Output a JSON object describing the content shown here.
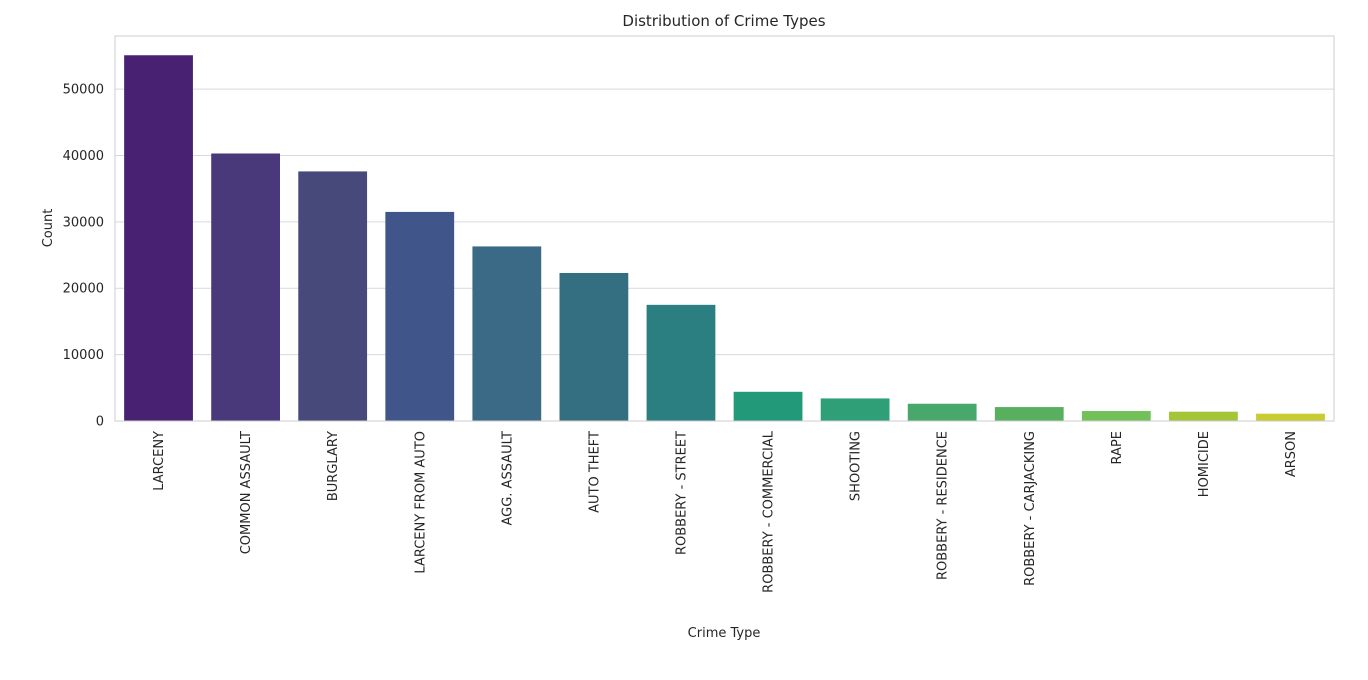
{
  "chart_data": {
    "type": "bar",
    "title": "Distribution of Crime Types",
    "xlabel": "Crime Type",
    "ylabel": "Count",
    "categories": [
      "LARCENY",
      "COMMON ASSAULT",
      "BURGLARY",
      "LARCENY FROM AUTO",
      "AGG. ASSAULT",
      "AUTO THEFT",
      "ROBBERY - STREET",
      "ROBBERY - COMMERCIAL",
      "SHOOTING",
      "ROBBERY - RESIDENCE",
      "ROBBERY - CARJACKING",
      "RAPE",
      "HOMICIDE",
      "ARSON"
    ],
    "values": [
      55100,
      40300,
      37600,
      31500,
      26300,
      22300,
      17500,
      4400,
      3400,
      2600,
      2100,
      1500,
      1400,
      1100
    ],
    "colors": [
      "#482173",
      "#49397a",
      "#47497b",
      "#40568a",
      "#3b6a86",
      "#336f80",
      "#2b7f80",
      "#229a7a",
      "#2e9f77",
      "#48a86c",
      "#58b05e",
      "#71c058",
      "#a3c638",
      "#c6cc32"
    ],
    "ylim": [
      0,
      58000
    ],
    "yticks": [
      0,
      10000,
      20000,
      30000,
      40000,
      50000
    ],
    "grid": true
  }
}
